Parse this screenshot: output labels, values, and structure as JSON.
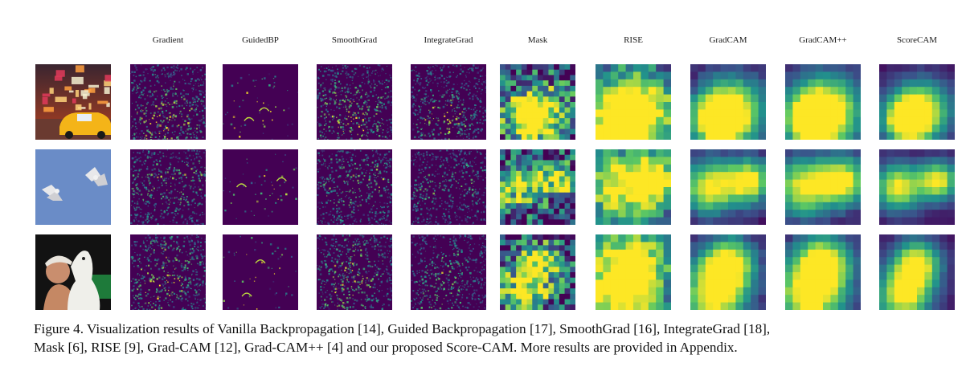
{
  "figure": {
    "columns": [
      "Gradient",
      "GuidedBP",
      "SmoothGrad",
      "IntegrateGrad",
      "Mask",
      "RISE",
      "GradCAM",
      "GradCAM++",
      "ScoreCAM"
    ],
    "rows": [
      {
        "subject": "taxi-street-scene",
        "blobs": [
          [
            0.55,
            0.62,
            0.22
          ],
          [
            0.35,
            0.75,
            0.15
          ]
        ]
      },
      {
        "subject": "two-birds-sky",
        "blobs": [
          [
            0.25,
            0.5,
            0.17
          ],
          [
            0.78,
            0.42,
            0.14
          ]
        ]
      },
      {
        "subject": "girl-with-dog",
        "blobs": [
          [
            0.5,
            0.38,
            0.17
          ],
          [
            0.32,
            0.82,
            0.2
          ]
        ]
      }
    ],
    "colormap": [
      "#440154",
      "#3b528b",
      "#21918c",
      "#5ec962",
      "#fde725"
    ]
  },
  "caption": {
    "line1": "Figure 4. Visualization results of Vanilla Backpropagation [14], Guided Backpropagation [17], SmoothGrad [16], IntegrateGrad [18],",
    "line2": "Mask [6], RISE [9], Grad-CAM [12], Grad-CAM++ [4] and our proposed Score-CAM. More results are provided in Appendix."
  }
}
